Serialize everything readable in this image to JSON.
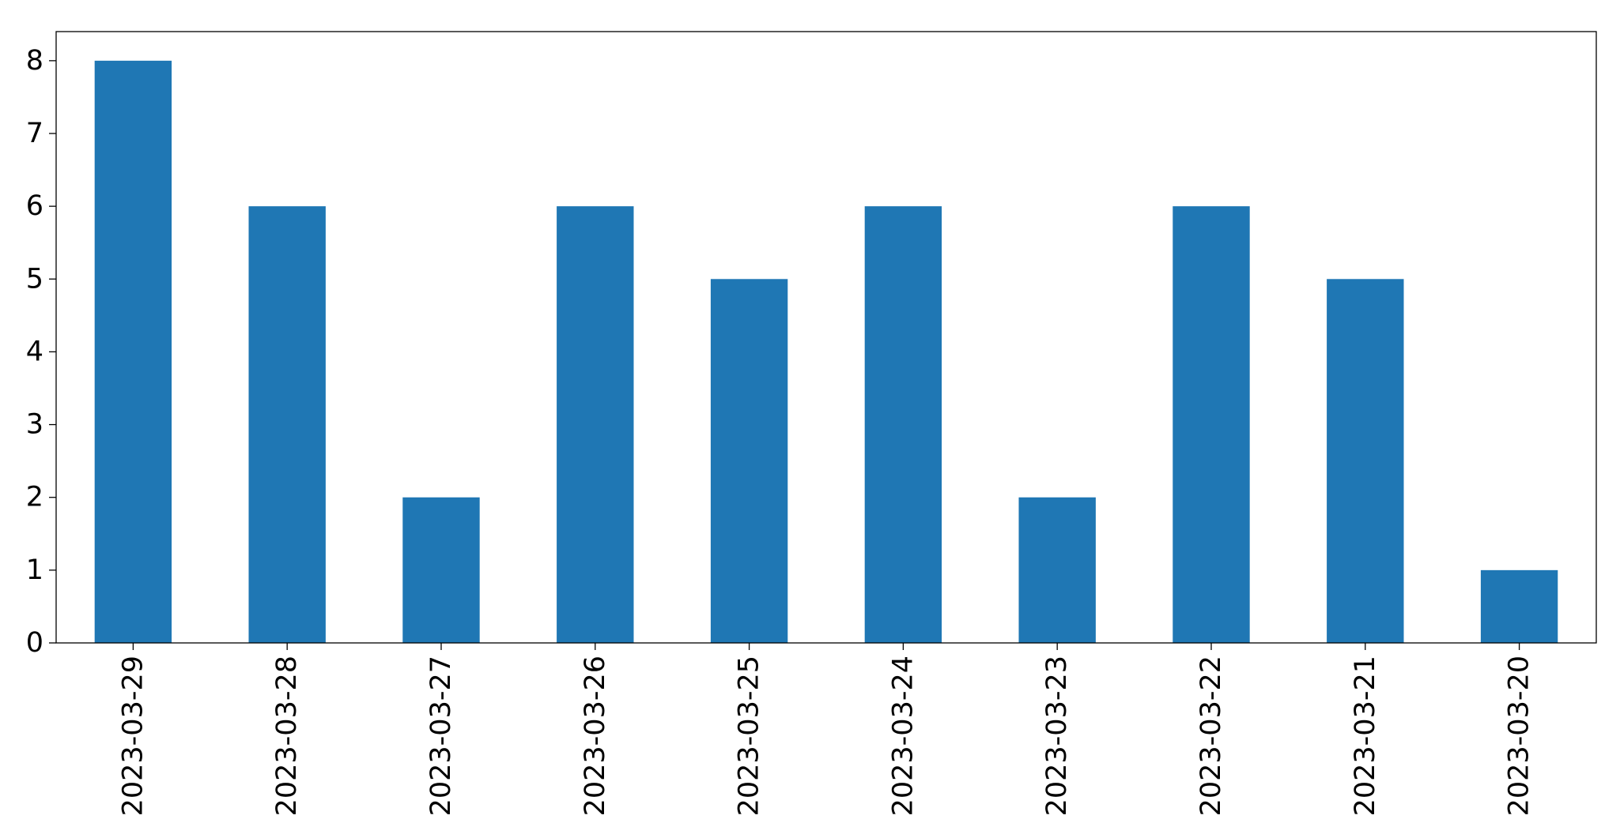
{
  "chart_data": {
    "type": "bar",
    "title": "",
    "xlabel": "",
    "ylabel": "",
    "categories": [
      "2023-03-29",
      "2023-03-28",
      "2023-03-27",
      "2023-03-26",
      "2023-03-25",
      "2023-03-24",
      "2023-03-23",
      "2023-03-22",
      "2023-03-21",
      "2023-03-20"
    ],
    "values": [
      8,
      6,
      2,
      6,
      5,
      6,
      2,
      6,
      5,
      1
    ],
    "ylim": [
      0,
      8.4
    ],
    "yticks": [
      0,
      1,
      2,
      3,
      4,
      5,
      6,
      7,
      8
    ],
    "grid": false,
    "legend": "none",
    "bar_color": "#1f77b4"
  }
}
